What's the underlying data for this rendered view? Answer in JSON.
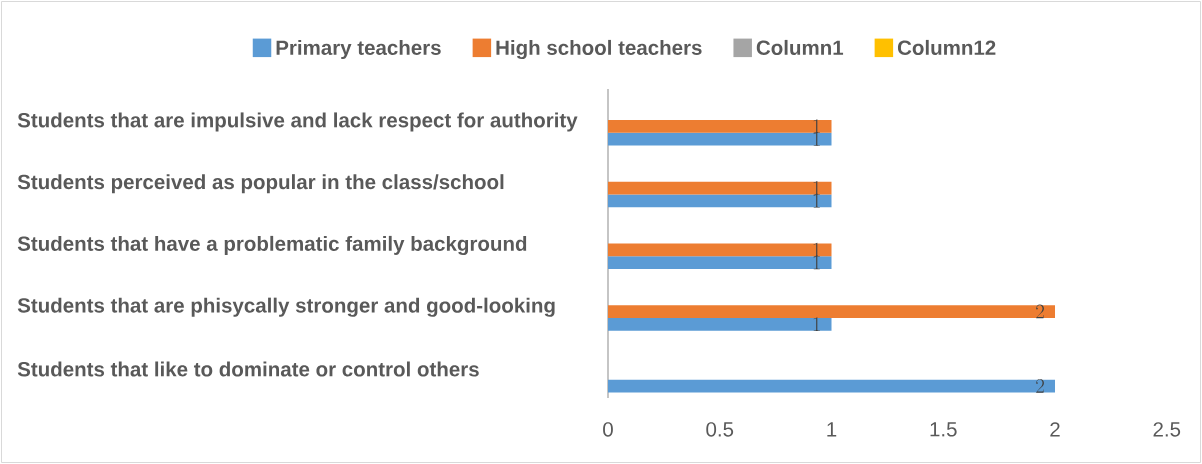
{
  "chart_data": {
    "type": "bar",
    "orientation": "horizontal",
    "categories": [
      "Students that are impulsive and lack respect for authority",
      "Students perceived as popular in the class/school",
      "Students that have a problematic family background",
      "Students that are phisycally stronger and good-looking",
      "Students that like to dominate or control others"
    ],
    "series": [
      {
        "name": "Primary teachers",
        "color": "#5b9bd5",
        "values": [
          1,
          1,
          1,
          1,
          2
        ]
      },
      {
        "name": "High school teachers",
        "color": "#ed7d31",
        "values": [
          1,
          1,
          1,
          2,
          null
        ]
      },
      {
        "name": "Column1",
        "color": "#a5a5a5",
        "values": [
          null,
          null,
          null,
          null,
          null
        ]
      },
      {
        "name": "Column12",
        "color": "#ffc000",
        "values": [
          null,
          null,
          null,
          null,
          null
        ]
      }
    ],
    "xlim": [
      0,
      2.5
    ],
    "xticks": [
      0,
      0.5,
      1,
      1.5,
      2,
      2.5
    ],
    "legend": "top",
    "data_labels": true
  }
}
